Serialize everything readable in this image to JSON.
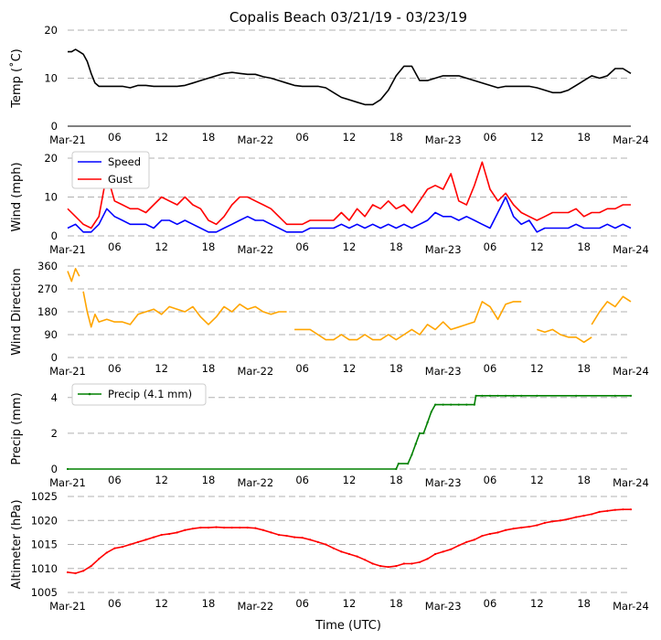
{
  "chart_data": {
    "title": "Copalis Beach 03/21/19 - 03/23/19",
    "xlabel": "Time (UTC)",
    "x_ticks": [
      "Mar-21",
      "06",
      "12",
      "18",
      "Mar-22",
      "06",
      "12",
      "18",
      "Mar-23",
      "06",
      "12",
      "18",
      "Mar-24"
    ],
    "x_range_hours": [
      0,
      72
    ],
    "panels": [
      {
        "id": "temp",
        "type": "line",
        "ylabel": "Temp (˚C)",
        "ylim": [
          0,
          20
        ],
        "yticks": [
          0,
          10,
          20
        ],
        "series": [
          {
            "name": "Temp",
            "color": "#000000",
            "x": [
              0,
              0.5,
              1,
              1.5,
              2,
              2.5,
              3,
              3.5,
              4,
              5,
              6,
              7,
              8,
              9,
              10,
              11,
              12,
              13,
              14,
              15,
              16,
              17,
              18,
              19,
              20,
              21,
              22,
              23,
              24,
              25,
              26,
              27,
              28,
              29,
              30,
              31,
              32,
              33,
              34,
              35,
              36,
              37,
              38,
              39,
              40,
              41,
              42,
              43,
              44,
              45,
              46,
              47,
              48,
              49,
              50,
              51,
              52,
              53,
              54,
              55,
              56,
              57,
              58,
              59,
              60,
              61,
              62,
              63,
              64,
              65,
              66,
              67,
              68,
              69,
              70,
              71,
              72
            ],
            "y": [
              15.5,
              15.5,
              16,
              15.5,
              15,
              13.5,
              11,
              9,
              8.3,
              8.3,
              8.3,
              8.3,
              8,
              8.5,
              8.5,
              8.3,
              8.3,
              8.3,
              8.3,
              8.5,
              9,
              9.5,
              10,
              10.5,
              11,
              11.2,
              11,
              10.8,
              10.8,
              10.3,
              10,
              9.5,
              9,
              8.5,
              8.3,
              8.3,
              8.3,
              8,
              7,
              6,
              5.5,
              5,
              4.5,
              4.5,
              5.5,
              7.5,
              10.5,
              12.5,
              12.5,
              9.5,
              9.5,
              10,
              10.5,
              10.5,
              10.5,
              10,
              9.5,
              9,
              8.5,
              8,
              8.3,
              8.3,
              8.3,
              8.3,
              8,
              7.5,
              7,
              7,
              7.5,
              8.5,
              9.5,
              10.5,
              10,
              10.5,
              12,
              12,
              11
            ]
          }
        ]
      },
      {
        "id": "wind",
        "type": "line",
        "ylabel": "Wind (mph)",
        "ylim": [
          0,
          20
        ],
        "yticks": [
          0,
          10,
          20
        ],
        "legend": "top-left",
        "series": [
          {
            "name": "Speed",
            "color": "#0000ff",
            "x": [
              0,
              1,
              2,
              3,
              4,
              5,
              6,
              7,
              8,
              9,
              10,
              11,
              12,
              13,
              14,
              15,
              16,
              17,
              18,
              19,
              20,
              21,
              22,
              23,
              24,
              25,
              26,
              27,
              28,
              29,
              30,
              31,
              32,
              33,
              34,
              35,
              36,
              37,
              38,
              39,
              40,
              41,
              42,
              43,
              44,
              45,
              46,
              47,
              48,
              49,
              50,
              51,
              52,
              53,
              54,
              55,
              56,
              57,
              58,
              59,
              60,
              61,
              62,
              63,
              64,
              65,
              66,
              67,
              68,
              69,
              70,
              71,
              72
            ],
            "y": [
              2,
              3,
              1,
              1,
              3,
              7,
              5,
              4,
              3,
              3,
              3,
              2,
              4,
              4,
              3,
              4,
              3,
              2,
              1,
              1,
              2,
              3,
              4,
              5,
              4,
              4,
              3,
              2,
              1,
              1,
              1,
              2,
              2,
              2,
              2,
              3,
              2,
              3,
              2,
              3,
              2,
              3,
              2,
              3,
              2,
              3,
              4,
              6,
              5,
              5,
              4,
              5,
              4,
              3,
              2,
              6,
              10,
              5,
              3,
              4,
              1,
              2,
              2,
              2,
              2,
              3,
              2,
              2,
              2,
              3,
              2,
              3,
              2
            ]
          },
          {
            "name": "Gust",
            "color": "#ff0000",
            "x": [
              0,
              1,
              2,
              3,
              4,
              5,
              6,
              7,
              8,
              9,
              10,
              11,
              12,
              13,
              14,
              15,
              16,
              17,
              18,
              19,
              20,
              21,
              22,
              23,
              24,
              25,
              26,
              27,
              28,
              29,
              30,
              31,
              32,
              33,
              34,
              35,
              36,
              37,
              38,
              39,
              40,
              41,
              42,
              43,
              44,
              45,
              46,
              47,
              48,
              49,
              50,
              51,
              52,
              53,
              54,
              55,
              56,
              57,
              58,
              59,
              60,
              61,
              62,
              63,
              64,
              65,
              66,
              67,
              68,
              69,
              70,
              71,
              72
            ],
            "y": [
              7,
              5,
              3,
              2,
              5,
              16,
              9,
              8,
              7,
              7,
              6,
              8,
              10,
              9,
              8,
              10,
              8,
              7,
              4,
              3,
              5,
              8,
              10,
              10,
              9,
              8,
              7,
              5,
              3,
              3,
              3,
              4,
              4,
              4,
              4,
              6,
              4,
              7,
              5,
              8,
              7,
              9,
              7,
              8,
              6,
              9,
              12,
              13,
              12,
              16,
              9,
              8,
              13,
              19,
              12,
              9,
              11,
              8,
              6,
              5,
              4,
              5,
              6,
              6,
              6,
              7,
              5,
              6,
              6,
              7,
              7,
              8,
              8
            ]
          }
        ]
      },
      {
        "id": "winddir",
        "type": "line",
        "ylabel": "Wind Direction",
        "ylim": [
          0,
          360
        ],
        "yticks": [
          0,
          90,
          180,
          270,
          360
        ],
        "series": [
          {
            "name": "Direction",
            "color": "#ffa500",
            "segments": [
              {
                "x": [
                  0,
                  0.5,
                  1,
                  1.5
                ],
                "y": [
                  340,
                  300,
                  350,
                  320
                ]
              },
              {
                "x": [
                  2,
                  2.5,
                  3,
                  3.5,
                  4,
                  5,
                  6,
                  7,
                  8,
                  9,
                  10,
                  11,
                  12,
                  13,
                  14,
                  15,
                  16,
                  17,
                  18,
                  19,
                  20,
                  21,
                  22,
                  23,
                  24,
                  25,
                  26,
                  27,
                  28
                ],
                "y": [
                  260,
                  180,
                  120,
                  170,
                  140,
                  150,
                  140,
                  140,
                  130,
                  170,
                  180,
                  190,
                  170,
                  200,
                  190,
                  180,
                  200,
                  160,
                  130,
                  160,
                  200,
                  180,
                  210,
                  190,
                  200,
                  180,
                  170,
                  180,
                  180
                ]
              },
              {
                "x": [
                  29,
                  30,
                  31,
                  32,
                  33,
                  34,
                  35,
                  36,
                  37,
                  38,
                  39,
                  40,
                  41,
                  42,
                  43,
                  44,
                  45,
                  46,
                  47,
                  48,
                  49,
                  50,
                  51,
                  52,
                  53,
                  54,
                  55,
                  56,
                  57,
                  58
                ],
                "y": [
                  110,
                  110,
                  110,
                  90,
                  70,
                  70,
                  90,
                  70,
                  70,
                  90,
                  70,
                  70,
                  90,
                  70,
                  90,
                  110,
                  90,
                  130,
                  110,
                  140,
                  110,
                  120,
                  130,
                  140,
                  220,
                  200,
                  150,
                  210,
                  220,
                  220
                ]
              },
              {
                "x": [
                  60,
                  61,
                  62,
                  63,
                  64,
                  65,
                  66,
                  67
                ],
                "y": [
                  110,
                  100,
                  110,
                  90,
                  80,
                  80,
                  60,
                  80
                ]
              },
              {
                "x": [
                  67,
                  68,
                  69,
                  70,
                  71,
                  72
                ],
                "y": [
                  130,
                  180,
                  220,
                  200,
                  240,
                  220
                ]
              }
            ]
          }
        ]
      },
      {
        "id": "precip",
        "type": "line",
        "ylabel": "Precip (mm)",
        "ylim": [
          0,
          4.5
        ],
        "yticks": [
          0,
          2,
          4
        ],
        "legend": "top-left",
        "series": [
          {
            "name": "Precip (4.1 mm)",
            "color": "#008000",
            "x": [
              0,
              42,
              42.3,
              43.5,
              44,
              44.5,
              45,
              45.5,
              46,
              46.5,
              47,
              48,
              49,
              50,
              51,
              52,
              52.2,
              53,
              54,
              55,
              56,
              57,
              58,
              60,
              65,
              70,
              72
            ],
            "y": [
              0,
              0,
              0.3,
              0.3,
              0.8,
              1.4,
              2.0,
              2.0,
              2.6,
              3.2,
              3.6,
              3.6,
              3.6,
              3.6,
              3.6,
              3.6,
              4.1,
              4.1,
              4.1,
              4.1,
              4.1,
              4.1,
              4.1,
              4.1,
              4.1,
              4.1,
              4.1
            ]
          }
        ]
      },
      {
        "id": "altimeter",
        "type": "line",
        "ylabel": "Altimeter (hPa)",
        "ylim": [
          1005,
          1025
        ],
        "yticks": [
          1005,
          1010,
          1015,
          1020,
          1025
        ],
        "series": [
          {
            "name": "Altimeter",
            "color": "#ff0000",
            "x": [
              0,
              1,
              2,
              3,
              4,
              5,
              6,
              7,
              8,
              9,
              10,
              11,
              12,
              13,
              14,
              15,
              16,
              17,
              18,
              19,
              20,
              21,
              22,
              23,
              24,
              25,
              26,
              27,
              28,
              29,
              30,
              31,
              32,
              33,
              34,
              35,
              36,
              37,
              38,
              39,
              40,
              41,
              42,
              43,
              44,
              45,
              46,
              47,
              48,
              49,
              50,
              51,
              52,
              53,
              54,
              55,
              56,
              57,
              58,
              59,
              60,
              61,
              62,
              63,
              64,
              65,
              66,
              67,
              68,
              69,
              70,
              71,
              72
            ],
            "y": [
              1009.2,
              1009,
              1009.5,
              1010.5,
              1012,
              1013.3,
              1014.2,
              1014.5,
              1015,
              1015.5,
              1016,
              1016.5,
              1017,
              1017.2,
              1017.5,
              1018,
              1018.3,
              1018.5,
              1018.5,
              1018.6,
              1018.5,
              1018.5,
              1018.5,
              1018.5,
              1018.4,
              1018,
              1017.5,
              1017,
              1016.8,
              1016.5,
              1016.4,
              1016,
              1015.5,
              1015,
              1014.2,
              1013.5,
              1013,
              1012.5,
              1011.8,
              1011,
              1010.5,
              1010.3,
              1010.5,
              1011,
              1011,
              1011.3,
              1012,
              1013,
              1013.5,
              1014,
              1014.8,
              1015.5,
              1016,
              1016.8,
              1017.2,
              1017.5,
              1018,
              1018.3,
              1018.5,
              1018.7,
              1019,
              1019.5,
              1019.8,
              1020,
              1020.3,
              1020.7,
              1021,
              1021.3,
              1021.8,
              1022,
              1022.2,
              1022.3,
              1022.3
            ]
          }
        ]
      }
    ]
  }
}
